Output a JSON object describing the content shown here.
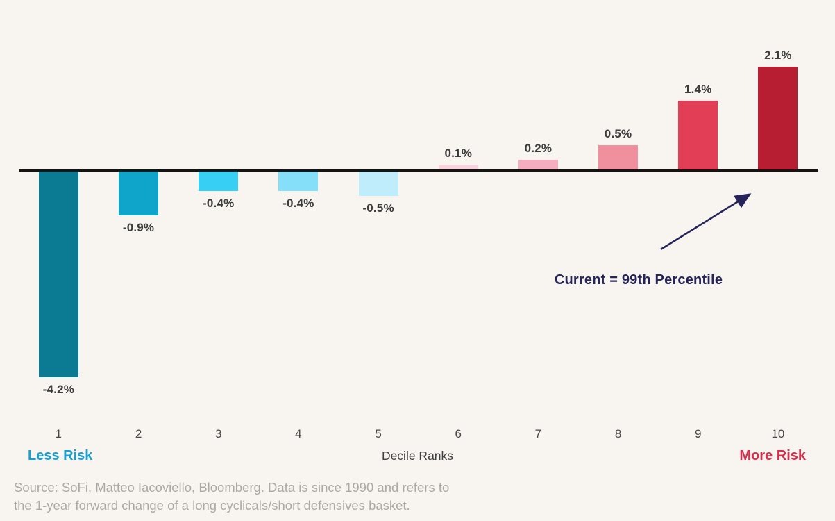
{
  "chart_data": {
    "type": "bar",
    "categories": [
      "1",
      "2",
      "3",
      "4",
      "5",
      "6",
      "7",
      "8",
      "9",
      "10"
    ],
    "values": [
      -4.2,
      -0.9,
      -0.4,
      -0.4,
      -0.5,
      0.1,
      0.2,
      0.5,
      1.4,
      2.1
    ],
    "value_labels": [
      "-4.2%",
      "-0.9%",
      "-0.4%",
      "-0.4%",
      "-0.5%",
      "0.1%",
      "0.2%",
      "0.5%",
      "1.4%",
      "2.1%"
    ],
    "bar_colors": [
      "#0B7A93",
      "#0FA4CA",
      "#38CFF5",
      "#85DFF8",
      "#BFEDFB",
      "#F8D2DD",
      "#F4AEBF",
      "#F0909F",
      "#E23E55",
      "#B81E31"
    ],
    "title": "",
    "xlabel": "Decile Ranks",
    "ylabel": "",
    "axis_caption_left": "Less Risk",
    "axis_caption_right": "More Risk",
    "annotation": "Current = 99th Percentile",
    "ylim": [
      -4.6,
      2.6
    ],
    "baseline": 0,
    "grid": false,
    "legend": "none"
  },
  "footer": {
    "source_line1": "Source: SoFi, Matteo Iacoviello, Bloomberg. Data is since 1990 and refers to",
    "source_line2": "the 1-year forward change of a long cyclicals/short defensives basket."
  },
  "colors": {
    "background": "#F8F5F0",
    "axis_line": "#141414",
    "value_label": "#3C3C3C",
    "tick_label": "#484848",
    "xlabel": "#3F3F3F",
    "less_risk": "#189FD0",
    "more_risk": "#D92E4B",
    "annotation_navy": "#262459",
    "source_text": "#ACA9A4"
  }
}
